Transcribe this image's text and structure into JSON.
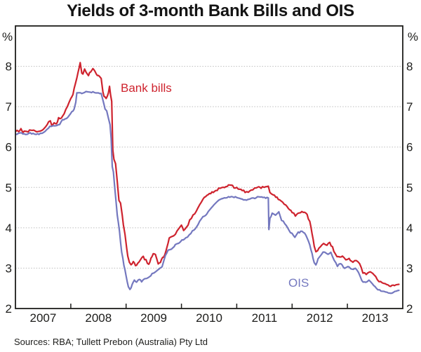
{
  "title": "Yields of 3-month Bank Bills and OIS",
  "source_note": "Sources: RBA; Tullett Prebon (Australia) Pty Ltd",
  "axis_percent_label": "%",
  "colors": {
    "axis": "#1d1d1b",
    "grid": "#bdbdbd",
    "background": "#ffffff"
  },
  "chart_data": {
    "type": "line",
    "title": "Yields of 3-month Bank Bills and OIS",
    "xlabel": "",
    "ylabel": "%",
    "x_range": [
      2007,
      2014
    ],
    "y_range": [
      2,
      9
    ],
    "y_ticks": [
      2,
      3,
      4,
      5,
      6,
      7,
      8
    ],
    "x_tick_years": [
      2008,
      2009,
      2010,
      2011,
      2012,
      2013
    ],
    "x_labels": [
      "2007",
      "2008",
      "2009",
      "2010",
      "2011",
      "2012",
      "2013"
    ],
    "grid": "horizontal-dotted",
    "legend_position": "inline-labels",
    "series": [
      {
        "name": "Bank bills",
        "color": "#ce232e",
        "jitter": 0.028,
        "points": [
          [
            2007.0,
            6.38
          ],
          [
            2007.06,
            6.4
          ],
          [
            2007.1,
            6.44
          ],
          [
            2007.14,
            6.36
          ],
          [
            2007.18,
            6.41
          ],
          [
            2007.23,
            6.37
          ],
          [
            2007.28,
            6.42
          ],
          [
            2007.33,
            6.44
          ],
          [
            2007.38,
            6.38
          ],
          [
            2007.44,
            6.42
          ],
          [
            2007.5,
            6.44
          ],
          [
            2007.55,
            6.5
          ],
          [
            2007.6,
            6.65
          ],
          [
            2007.63,
            6.67
          ],
          [
            2007.66,
            6.55
          ],
          [
            2007.7,
            6.58
          ],
          [
            2007.74,
            6.6
          ],
          [
            2007.78,
            6.7
          ],
          [
            2007.83,
            6.73
          ],
          [
            2007.88,
            6.85
          ],
          [
            2007.94,
            7.01
          ],
          [
            2008.0,
            7.18
          ],
          [
            2008.04,
            7.3
          ],
          [
            2008.08,
            7.55
          ],
          [
            2008.11,
            7.71
          ],
          [
            2008.15,
            7.95
          ],
          [
            2008.17,
            8.08
          ],
          [
            2008.2,
            7.85
          ],
          [
            2008.22,
            7.82
          ],
          [
            2008.25,
            7.94
          ],
          [
            2008.28,
            7.86
          ],
          [
            2008.32,
            7.79
          ],
          [
            2008.36,
            7.86
          ],
          [
            2008.4,
            7.94
          ],
          [
            2008.44,
            7.86
          ],
          [
            2008.48,
            7.78
          ],
          [
            2008.52,
            7.74
          ],
          [
            2008.55,
            7.71
          ],
          [
            2008.58,
            7.4
          ],
          [
            2008.6,
            7.27
          ],
          [
            2008.64,
            7.21
          ],
          [
            2008.68,
            7.35
          ],
          [
            2008.7,
            7.5
          ],
          [
            2008.72,
            7.3
          ],
          [
            2008.74,
            7.12
          ],
          [
            2008.76,
            5.9
          ],
          [
            2008.78,
            5.68
          ],
          [
            2008.81,
            5.57
          ],
          [
            2008.84,
            5.16
          ],
          [
            2008.87,
            4.66
          ],
          [
            2008.9,
            4.6
          ],
          [
            2008.93,
            4.3
          ],
          [
            2008.95,
            4.06
          ],
          [
            2008.98,
            3.85
          ],
          [
            2009.01,
            3.48
          ],
          [
            2009.03,
            3.28
          ],
          [
            2009.06,
            3.16
          ],
          [
            2009.09,
            3.07
          ],
          [
            2009.13,
            3.19
          ],
          [
            2009.17,
            3.04
          ],
          [
            2009.21,
            3.13
          ],
          [
            2009.26,
            3.19
          ],
          [
            2009.31,
            3.28
          ],
          [
            2009.36,
            3.19
          ],
          [
            2009.41,
            3.1
          ],
          [
            2009.45,
            3.25
          ],
          [
            2009.49,
            3.36
          ],
          [
            2009.53,
            3.33
          ],
          [
            2009.58,
            3.1
          ],
          [
            2009.62,
            3.14
          ],
          [
            2009.66,
            3.25
          ],
          [
            2009.7,
            3.33
          ],
          [
            2009.74,
            3.54
          ],
          [
            2009.78,
            3.74
          ],
          [
            2009.83,
            3.8
          ],
          [
            2009.89,
            3.85
          ],
          [
            2009.95,
            4.0
          ],
          [
            2010.0,
            4.09
          ],
          [
            2010.04,
            3.94
          ],
          [
            2010.09,
            4.01
          ],
          [
            2010.15,
            4.17
          ],
          [
            2010.21,
            4.32
          ],
          [
            2010.27,
            4.41
          ],
          [
            2010.33,
            4.58
          ],
          [
            2010.39,
            4.7
          ],
          [
            2010.46,
            4.78
          ],
          [
            2010.53,
            4.85
          ],
          [
            2010.62,
            4.92
          ],
          [
            2010.7,
            4.98
          ],
          [
            2010.78,
            5.02
          ],
          [
            2010.85,
            5.05
          ],
          [
            2010.95,
            5.01
          ],
          [
            2011.05,
            4.96
          ],
          [
            2011.15,
            4.9
          ],
          [
            2011.21,
            4.86
          ],
          [
            2011.29,
            4.95
          ],
          [
            2011.35,
            5.01
          ],
          [
            2011.44,
            4.98
          ],
          [
            2011.52,
            5.02
          ],
          [
            2011.57,
            5.04
          ],
          [
            2011.6,
            4.85
          ],
          [
            2011.66,
            4.8
          ],
          [
            2011.75,
            4.72
          ],
          [
            2011.83,
            4.63
          ],
          [
            2011.91,
            4.51
          ],
          [
            2012.0,
            4.4
          ],
          [
            2012.06,
            4.28
          ],
          [
            2012.13,
            4.37
          ],
          [
            2012.2,
            4.4
          ],
          [
            2012.27,
            4.34
          ],
          [
            2012.32,
            4.14
          ],
          [
            2012.36,
            3.88
          ],
          [
            2012.4,
            3.55
          ],
          [
            2012.43,
            3.38
          ],
          [
            2012.46,
            3.45
          ],
          [
            2012.51,
            3.53
          ],
          [
            2012.57,
            3.62
          ],
          [
            2012.63,
            3.56
          ],
          [
            2012.68,
            3.62
          ],
          [
            2012.73,
            3.53
          ],
          [
            2012.78,
            3.35
          ],
          [
            2012.84,
            3.26
          ],
          [
            2012.91,
            3.32
          ],
          [
            2012.97,
            3.2
          ],
          [
            2013.03,
            3.24
          ],
          [
            2013.1,
            3.17
          ],
          [
            2013.16,
            3.21
          ],
          [
            2013.22,
            3.12
          ],
          [
            2013.28,
            2.89
          ],
          [
            2013.34,
            2.86
          ],
          [
            2013.41,
            2.92
          ],
          [
            2013.48,
            2.82
          ],
          [
            2013.54,
            2.72
          ],
          [
            2013.6,
            2.65
          ],
          [
            2013.68,
            2.6
          ],
          [
            2013.76,
            2.57
          ],
          [
            2013.85,
            2.56
          ],
          [
            2013.93,
            2.6
          ]
        ]
      },
      {
        "name": "OIS",
        "color": "#7478bf",
        "jitter": 0.018,
        "points": [
          [
            2007.0,
            6.32
          ],
          [
            2007.08,
            6.35
          ],
          [
            2007.16,
            6.32
          ],
          [
            2007.24,
            6.34
          ],
          [
            2007.32,
            6.33
          ],
          [
            2007.4,
            6.32
          ],
          [
            2007.48,
            6.35
          ],
          [
            2007.54,
            6.38
          ],
          [
            2007.58,
            6.44
          ],
          [
            2007.62,
            6.5
          ],
          [
            2007.68,
            6.52
          ],
          [
            2007.74,
            6.53
          ],
          [
            2007.8,
            6.56
          ],
          [
            2007.85,
            6.68
          ],
          [
            2007.92,
            6.7
          ],
          [
            2007.97,
            6.78
          ],
          [
            2008.02,
            6.88
          ],
          [
            2008.06,
            6.92
          ],
          [
            2008.09,
            7.1
          ],
          [
            2008.11,
            7.33
          ],
          [
            2008.15,
            7.35
          ],
          [
            2008.2,
            7.33
          ],
          [
            2008.25,
            7.36
          ],
          [
            2008.3,
            7.38
          ],
          [
            2008.35,
            7.36
          ],
          [
            2008.4,
            7.37
          ],
          [
            2008.45,
            7.35
          ],
          [
            2008.5,
            7.34
          ],
          [
            2008.55,
            7.32
          ],
          [
            2008.58,
            7.18
          ],
          [
            2008.62,
            6.95
          ],
          [
            2008.65,
            6.89
          ],
          [
            2008.68,
            6.7
          ],
          [
            2008.71,
            6.55
          ],
          [
            2008.73,
            6.2
          ],
          [
            2008.75,
            5.52
          ],
          [
            2008.77,
            5.38
          ],
          [
            2008.8,
            4.91
          ],
          [
            2008.84,
            4.33
          ],
          [
            2008.88,
            3.9
          ],
          [
            2008.92,
            3.4
          ],
          [
            2008.96,
            3.08
          ],
          [
            2009.0,
            2.82
          ],
          [
            2009.04,
            2.53
          ],
          [
            2009.07,
            2.47
          ],
          [
            2009.11,
            2.59
          ],
          [
            2009.15,
            2.7
          ],
          [
            2009.19,
            2.65
          ],
          [
            2009.24,
            2.73
          ],
          [
            2009.28,
            2.67
          ],
          [
            2009.34,
            2.73
          ],
          [
            2009.4,
            2.76
          ],
          [
            2009.47,
            2.85
          ],
          [
            2009.53,
            2.91
          ],
          [
            2009.59,
            2.96
          ],
          [
            2009.65,
            3.05
          ],
          [
            2009.71,
            3.3
          ],
          [
            2009.76,
            3.43
          ],
          [
            2009.82,
            3.48
          ],
          [
            2009.89,
            3.57
          ],
          [
            2009.95,
            3.63
          ],
          [
            2010.01,
            3.69
          ],
          [
            2010.08,
            3.74
          ],
          [
            2010.14,
            3.83
          ],
          [
            2010.2,
            3.92
          ],
          [
            2010.27,
            4.0
          ],
          [
            2010.33,
            4.15
          ],
          [
            2010.39,
            4.26
          ],
          [
            2010.46,
            4.35
          ],
          [
            2010.54,
            4.5
          ],
          [
            2010.62,
            4.62
          ],
          [
            2010.7,
            4.69
          ],
          [
            2010.8,
            4.74
          ],
          [
            2010.9,
            4.77
          ],
          [
            2011.0,
            4.75
          ],
          [
            2011.1,
            4.71
          ],
          [
            2011.2,
            4.69
          ],
          [
            2011.3,
            4.73
          ],
          [
            2011.4,
            4.77
          ],
          [
            2011.5,
            4.75
          ],
          [
            2011.57,
            4.74
          ],
          [
            2011.58,
            3.95
          ],
          [
            2011.6,
            4.22
          ],
          [
            2011.64,
            4.37
          ],
          [
            2011.7,
            4.31
          ],
          [
            2011.76,
            4.4
          ],
          [
            2011.81,
            4.19
          ],
          [
            2011.87,
            4.11
          ],
          [
            2011.94,
            3.93
          ],
          [
            2012.0,
            3.85
          ],
          [
            2012.05,
            3.76
          ],
          [
            2012.11,
            3.88
          ],
          [
            2012.18,
            3.91
          ],
          [
            2012.25,
            3.82
          ],
          [
            2012.32,
            3.59
          ],
          [
            2012.36,
            3.35
          ],
          [
            2012.4,
            3.12
          ],
          [
            2012.43,
            3.09
          ],
          [
            2012.47,
            3.23
          ],
          [
            2012.53,
            3.35
          ],
          [
            2012.59,
            3.41
          ],
          [
            2012.65,
            3.35
          ],
          [
            2012.7,
            3.38
          ],
          [
            2012.76,
            3.2
          ],
          [
            2012.82,
            3.06
          ],
          [
            2012.88,
            3.12
          ],
          [
            2012.95,
            3.0
          ],
          [
            2013.01,
            3.03
          ],
          [
            2013.08,
            2.97
          ],
          [
            2013.14,
            3.0
          ],
          [
            2013.2,
            2.91
          ],
          [
            2013.26,
            2.68
          ],
          [
            2013.33,
            2.65
          ],
          [
            2013.39,
            2.71
          ],
          [
            2013.45,
            2.62
          ],
          [
            2013.52,
            2.5
          ],
          [
            2013.58,
            2.45
          ],
          [
            2013.66,
            2.41
          ],
          [
            2013.74,
            2.38
          ],
          [
            2013.83,
            2.4
          ],
          [
            2013.93,
            2.45
          ]
        ]
      }
    ]
  }
}
